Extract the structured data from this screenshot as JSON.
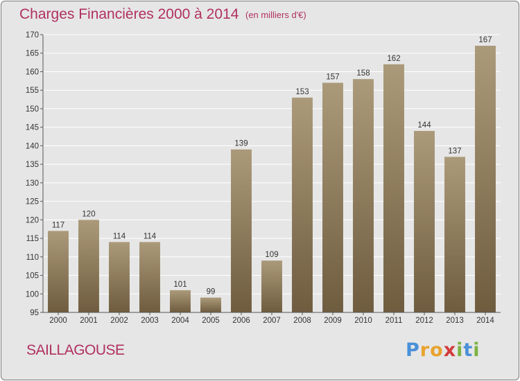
{
  "header": {
    "title": "Charges Financières 2000 à 2014",
    "subtitle": "(en milliers d'€)"
  },
  "footer": {
    "city": "SAILLAGOUSE",
    "logo_letters": [
      "P",
      "r",
      "o",
      "x",
      "i",
      "t",
      "i"
    ]
  },
  "colors": {
    "title": "#b03060",
    "bar_top": "#ab9a7a",
    "bar_bottom": "#6f5c3f",
    "logo": [
      "#4a90d9",
      "#e8a32e",
      "#e8a32e",
      "#d23c3c",
      "#7cb342",
      "#4a90d9",
      "#7cb342"
    ]
  },
  "chart_data": {
    "type": "bar",
    "categories": [
      "2000",
      "2001",
      "2002",
      "2003",
      "2004",
      "2005",
      "2006",
      "2007",
      "2008",
      "2009",
      "2010",
      "2011",
      "2012",
      "2013",
      "2014"
    ],
    "values": [
      117,
      120,
      114,
      114,
      101,
      99,
      139,
      109,
      153,
      157,
      158,
      162,
      144,
      137,
      167
    ],
    "ylim": [
      95,
      170
    ],
    "yticks": [
      95,
      100,
      105,
      110,
      115,
      120,
      125,
      130,
      135,
      140,
      145,
      150,
      155,
      160,
      165,
      170
    ],
    "grid": true,
    "legend": "none"
  }
}
